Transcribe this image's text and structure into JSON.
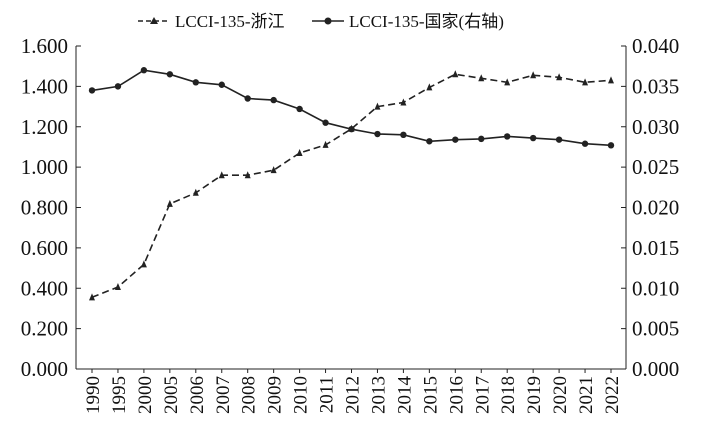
{
  "chart_data": {
    "type": "line",
    "categories": [
      "1990",
      "1995",
      "2000",
      "2005",
      "2006",
      "2007",
      "2008",
      "2009",
      "2010",
      "2011",
      "2012",
      "2013",
      "2014",
      "2015",
      "2016",
      "2017",
      "2018",
      "2019",
      "2020",
      "2021",
      "2022"
    ],
    "legend": [
      "LCCI-135-浙江",
      "LCCI-135-国家(右轴)"
    ],
    "series": [
      {
        "name": "LCCI-135-浙江",
        "axis": "left",
        "style": "dashed",
        "marker": "triangle",
        "color": "#222222",
        "values": [
          0.355,
          0.406,
          0.518,
          0.818,
          0.873,
          0.96,
          0.96,
          0.985,
          1.07,
          1.11,
          1.19,
          1.3,
          1.32,
          1.395,
          1.46,
          1.44,
          1.42,
          1.455,
          1.445,
          1.42,
          1.43
        ]
      },
      {
        "name": "LCCI-135-国家(右轴)",
        "axis": "right",
        "style": "solid",
        "marker": "circle",
        "color": "#222222",
        "values": [
          0.0345,
          0.035,
          0.037,
          0.0365,
          0.0355,
          0.0352,
          0.0335,
          0.0333,
          0.0322,
          0.0305,
          0.0297,
          0.0291,
          0.029,
          0.0282,
          0.0284,
          0.0285,
          0.0288,
          0.0286,
          0.0284,
          0.0279,
          0.0277
        ]
      }
    ],
    "y_left": {
      "ylim": [
        0,
        1.6
      ],
      "ticks": [
        "0.000",
        "0.200",
        "0.400",
        "0.600",
        "0.800",
        "1.000",
        "1.200",
        "1.400",
        "1.600"
      ]
    },
    "y_right": {
      "ylim": [
        0,
        0.04
      ],
      "ticks": [
        "0.000",
        "0.005",
        "0.010",
        "0.015",
        "0.020",
        "0.025",
        "0.030",
        "0.035",
        "0.040"
      ]
    },
    "legend_position": "top-center",
    "grid": false
  }
}
